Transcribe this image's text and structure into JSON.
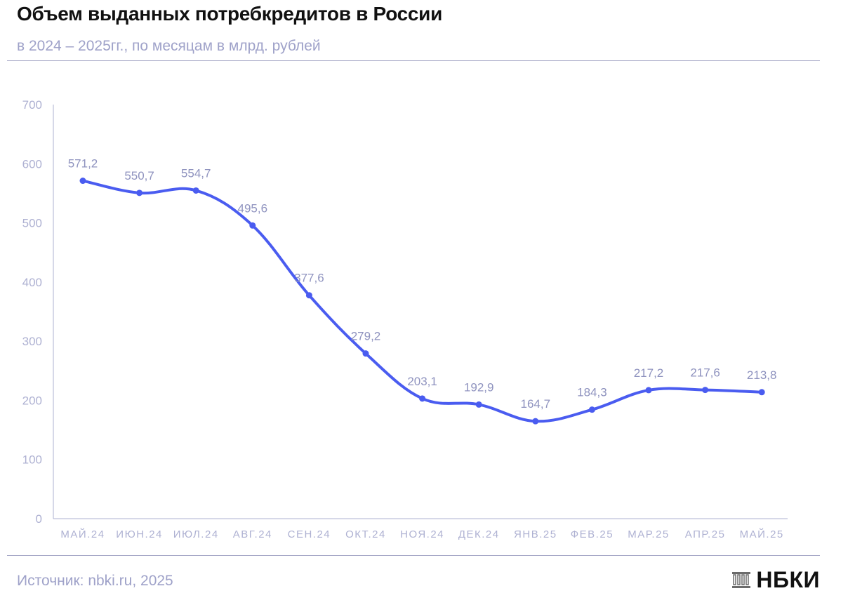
{
  "header": {
    "title": "Объем выданных потребкредитов в России",
    "subtitle": "в 2024 – 2025гг., по месяцам в млрд. рублей"
  },
  "footer": {
    "source": "Источник: nbki.ru, 2025",
    "brand": "НБКИ",
    "brand_icon": "building-columns-icon"
  },
  "colors": {
    "line": "#4a5cf0",
    "axis": "#aeb1d2",
    "label": "#8f93bf",
    "title": "#111111"
  },
  "chart_data": {
    "type": "line",
    "categories": [
      "МАЙ.24",
      "ИЮН.24",
      "ИЮЛ.24",
      "АВГ.24",
      "СЕН.24",
      "ОКТ.24",
      "НОЯ.24",
      "ДЕК.24",
      "ЯНВ.25",
      "ФЕВ.25",
      "МАР.25",
      "АПР.25",
      "МАЙ.25"
    ],
    "series": [
      {
        "values": [
          571.2,
          550.7,
          554.7,
          495.6,
          377.6,
          279.2,
          203.1,
          192.9,
          164.7,
          184.3,
          217.2,
          217.6,
          213.8
        ],
        "labels": [
          "571,2",
          "550,7",
          "554,7",
          "495,6",
          "377,6",
          "279,2",
          "203,1",
          "192,9",
          "164,7",
          "184,3",
          "217,2",
          "217,6",
          "213,8"
        ]
      }
    ],
    "yticks": [
      0,
      100,
      200,
      300,
      400,
      500,
      600,
      700
    ],
    "ylim": [
      0,
      700
    ],
    "smooth": true,
    "grid": false,
    "legend": "none"
  }
}
